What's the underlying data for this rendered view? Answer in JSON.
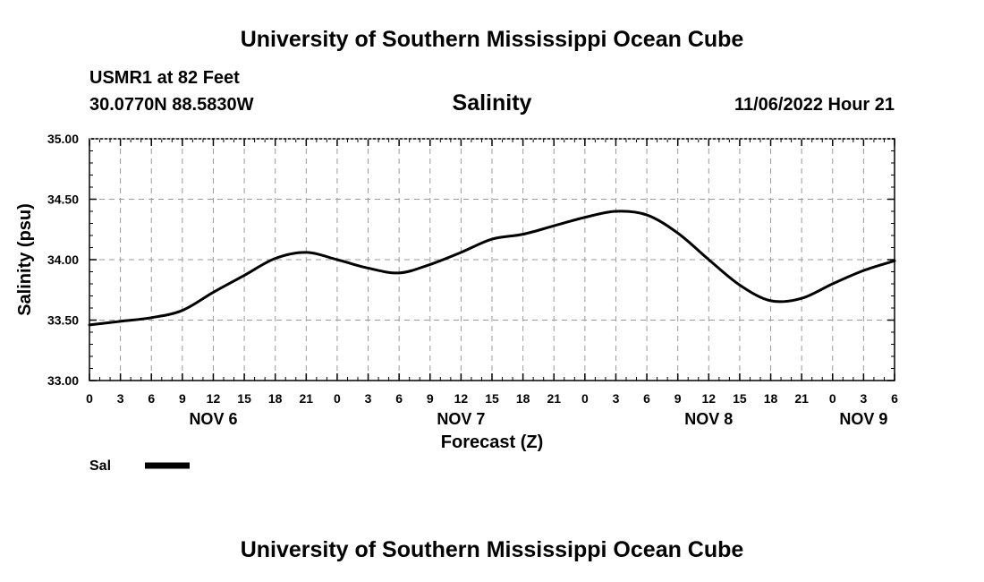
{
  "header": {
    "title": "University of Southern Mississippi Ocean Cube",
    "station": "USMR1 at 82 Feet",
    "coords": "30.0770N  88.5830W",
    "datetime": "11/06/2022 Hour 21"
  },
  "footer": {
    "title": "University of Southern Mississippi Ocean Cube"
  },
  "chart_data": {
    "type": "line",
    "title": "Salinity",
    "xlabel": "Forecast (Z)",
    "ylabel": "Salinity (psu)",
    "xlim": [
      0,
      78
    ],
    "ylim": [
      33.0,
      35.0
    ],
    "yticks": [
      "33.00",
      "33.50",
      "34.00",
      "34.50",
      "35.00"
    ],
    "ytick_values": [
      33.0,
      33.5,
      34.0,
      34.5,
      35.0
    ],
    "xticks": [
      "0",
      "3",
      "6",
      "9",
      "12",
      "15",
      "18",
      "21",
      "0",
      "3",
      "6",
      "9",
      "12",
      "15",
      "18",
      "21",
      "0",
      "3",
      "6",
      "9",
      "12",
      "15",
      "18",
      "21",
      "0",
      "3",
      "6"
    ],
    "date_labels": [
      {
        "label": "NOV 6",
        "x": 12
      },
      {
        "label": "NOV 7",
        "x": 36
      },
      {
        "label": "NOV 8",
        "x": 60
      },
      {
        "label": "NOV 9",
        "x": 75
      }
    ],
    "grid": true,
    "legend": {
      "position": "bottom-left",
      "label": "Sal"
    },
    "series": [
      {
        "name": "Sal",
        "color": "#000000",
        "x": [
          0,
          3,
          6,
          9,
          12,
          15,
          18,
          21,
          24,
          27,
          30,
          33,
          36,
          39,
          42,
          45,
          48,
          51,
          54,
          57,
          60,
          63,
          66,
          69,
          72,
          75,
          78
        ],
        "values": [
          33.46,
          33.49,
          33.52,
          33.58,
          33.73,
          33.87,
          34.01,
          34.06,
          34.0,
          33.93,
          33.89,
          33.96,
          34.06,
          34.17,
          34.21,
          34.28,
          34.35,
          34.4,
          34.37,
          34.22,
          34.0,
          33.79,
          33.66,
          33.68,
          33.8,
          33.91,
          33.99
        ]
      }
    ]
  }
}
